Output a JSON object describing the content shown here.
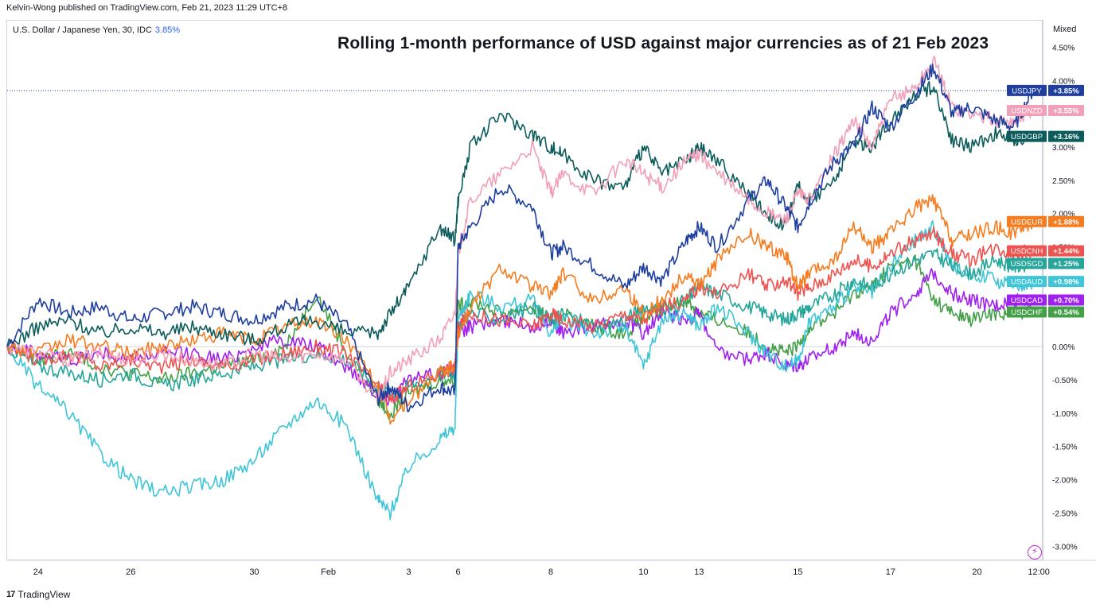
{
  "header": {
    "published_by": "Kelvin-Wong published on TradingView.com, Feb 21, 2023 11:29 UTC+8"
  },
  "symbol": {
    "name": "U.S. Dollar / Japanese Yen, 30, IDC",
    "value": "3.85%"
  },
  "scale_mode": "Mixed",
  "footer": {
    "brand": "TradingView",
    "logo": "17"
  },
  "colors": {
    "USDJPY": "#1e3fa0",
    "USDNZD": "#f2a0b8",
    "USDGBP": "#0d5c5c",
    "USDEUR": "#f57c1f",
    "USDCNH": "#ef5350",
    "USDSGD": "#26a69a",
    "USDAUD": "#3ec6d8",
    "USDCAD": "#a020f0",
    "USDCHF": "#43a047"
  },
  "chart_data": {
    "type": "line",
    "title": "Rolling 1-month performance of USD against major currencies as of 21 Feb 2023",
    "xlabel": "",
    "ylabel": "",
    "ylim": [
      -3.2,
      4.9
    ],
    "y_ticks": [
      "4.50%",
      "4.00%",
      "3.00%",
      "2.50%",
      "2.00%",
      "1.50%",
      "0.00%",
      "-0.50%",
      "-1.00%",
      "-1.50%",
      "-2.00%",
      "-2.50%",
      "-3.00%"
    ],
    "y_tick_values": [
      4.5,
      4.0,
      3.0,
      2.5,
      2.0,
      1.5,
      0.0,
      -0.5,
      -1.0,
      -1.5,
      -2.0,
      -2.5,
      -3.0
    ],
    "x_ticks": [
      "24",
      "26",
      "30",
      "Feb",
      "3",
      "6",
      "8",
      "10",
      "13",
      "15",
      "17",
      "20",
      "12:00"
    ],
    "x_tick_values": [
      0.5,
      2,
      4,
      5.2,
      6.5,
      7.3,
      8.8,
      10.3,
      11.2,
      12.8,
      14.3,
      15.7,
      16.7
    ],
    "x": [
      0,
      0.5,
      1,
      1.5,
      2,
      2.5,
      3,
      3.5,
      4,
      4.5,
      5,
      5.5,
      6,
      6.2,
      6.5,
      7,
      7.25,
      7.3,
      7.5,
      8,
      8.5,
      8.8,
      9,
      9.5,
      10,
      10.3,
      10.6,
      11,
      11.2,
      11.5,
      12,
      12.3,
      12.6,
      12.8,
      13,
      13.4,
      13.7,
      14,
      14.3,
      14.7,
      15,
      15.3,
      15.6,
      16,
      16.3,
      16.6
    ],
    "series": [
      {
        "name": "USDJPY",
        "label": "+3.85%",
        "values": [
          0,
          0.7,
          0.5,
          0.6,
          0.4,
          0.5,
          0.6,
          0.5,
          0.4,
          0.6,
          0.7,
          0.3,
          -0.8,
          -0.6,
          -0.9,
          -0.6,
          -0.7,
          1.5,
          1.8,
          2.4,
          2.1,
          1.4,
          1.5,
          1.2,
          0.9,
          1.2,
          1.0,
          1.6,
          1.8,
          1.5,
          2.2,
          2.5,
          2.1,
          1.8,
          2.2,
          2.8,
          3.0,
          3.6,
          3.3,
          3.8,
          4.2,
          3.5,
          3.6,
          3.4,
          3.3,
          3.85
        ]
      },
      {
        "name": "USDNZD",
        "label": "+3.55%",
        "values": [
          0,
          -0.1,
          -0.2,
          -0.1,
          -0.2,
          -0.1,
          -0.2,
          -0.3,
          -0.1,
          -0.2,
          -0.1,
          -0.2,
          -0.8,
          -0.4,
          -0.2,
          0.1,
          0.5,
          1.4,
          2.2,
          2.6,
          3.0,
          2.3,
          2.6,
          2.3,
          2.8,
          2.6,
          2.4,
          2.8,
          2.9,
          2.6,
          2.2,
          2.0,
          1.9,
          2.3,
          2.2,
          2.9,
          3.4,
          3.0,
          3.7,
          3.9,
          4.3,
          3.6,
          3.5,
          3.4,
          3.4,
          3.55
        ]
      },
      {
        "name": "USDGBP",
        "label": "+3.16%",
        "values": [
          0,
          0.3,
          0.4,
          0.2,
          0.3,
          0.2,
          0.3,
          0.2,
          0.1,
          0.3,
          0.4,
          0.2,
          0.2,
          0.5,
          0.9,
          1.8,
          1.6,
          2.2,
          3.0,
          3.5,
          3.2,
          3.0,
          2.9,
          2.5,
          2.4,
          3.0,
          2.6,
          2.8,
          3.0,
          2.8,
          2.3,
          2.0,
          1.8,
          2.4,
          2.2,
          2.5,
          3.1,
          3.0,
          3.4,
          3.8,
          3.9,
          3.1,
          3.0,
          3.2,
          3.1,
          3.16
        ]
      },
      {
        "name": "USDEUR",
        "label": "+1.88%",
        "values": [
          0,
          -0.1,
          0.1,
          0.0,
          -0.1,
          0.0,
          0.1,
          0.2,
          0.1,
          0.3,
          0.4,
          0.1,
          -0.6,
          -1.1,
          -0.8,
          -0.4,
          -0.3,
          0.2,
          0.6,
          1.2,
          0.9,
          0.8,
          1.1,
          0.7,
          0.9,
          0.5,
          0.7,
          1.1,
          0.9,
          1.3,
          1.7,
          1.5,
          1.4,
          0.9,
          1.1,
          1.3,
          1.8,
          1.5,
          1.7,
          2.1,
          2.2,
          1.6,
          1.7,
          1.8,
          1.7,
          1.88
        ]
      },
      {
        "name": "USDCNH",
        "label": "+1.44%",
        "values": [
          0,
          -0.2,
          -0.1,
          -0.3,
          -0.2,
          -0.3,
          -0.2,
          -0.3,
          -0.2,
          -0.1,
          0.0,
          -0.1,
          -0.6,
          -0.8,
          -0.6,
          -0.4,
          -0.3,
          0.3,
          0.5,
          0.4,
          0.3,
          0.5,
          0.4,
          0.3,
          0.5,
          0.4,
          0.6,
          0.7,
          0.9,
          0.8,
          1.1,
          0.9,
          1.0,
          0.8,
          0.9,
          1.1,
          1.3,
          1.2,
          1.4,
          1.6,
          1.7,
          1.4,
          1.3,
          1.5,
          1.4,
          1.44
        ]
      },
      {
        "name": "USDSGD",
        "label": "+1.25%",
        "values": [
          0,
          -0.3,
          -0.4,
          -0.5,
          -0.4,
          -0.6,
          -0.5,
          -0.4,
          -0.3,
          -0.2,
          -0.1,
          -0.2,
          -0.6,
          -0.7,
          -0.6,
          -0.4,
          -0.4,
          0.3,
          0.5,
          0.4,
          0.6,
          0.4,
          0.5,
          0.3,
          0.4,
          0.6,
          0.5,
          0.7,
          0.9,
          0.8,
          0.6,
          0.5,
          0.4,
          0.5,
          0.6,
          0.8,
          1.0,
          0.9,
          1.1,
          1.3,
          1.4,
          1.2,
          1.1,
          1.3,
          1.2,
          1.25
        ]
      },
      {
        "name": "USDAUD",
        "label": "+0.98%",
        "values": [
          0,
          -0.6,
          -1.0,
          -1.6,
          -2.0,
          -2.2,
          -2.1,
          -2.0,
          -1.7,
          -1.2,
          -0.8,
          -1.2,
          -2.3,
          -2.5,
          -1.8,
          -1.4,
          -1.2,
          0.4,
          0.8,
          0.6,
          0.7,
          0.2,
          0.4,
          0.2,
          0.3,
          -0.3,
          0.4,
          0.5,
          0.3,
          0.6,
          0.2,
          -0.1,
          -0.3,
          -0.2,
          0.4,
          0.6,
          0.9,
          0.8,
          1.2,
          1.6,
          1.8,
          1.2,
          1.1,
          1.0,
          0.9,
          0.98
        ]
      },
      {
        "name": "USDCAD",
        "label": "+0.70%",
        "values": [
          0,
          -0.1,
          -0.2,
          -0.1,
          -0.2,
          -0.1,
          -0.1,
          -0.2,
          0.0,
          0.1,
          0.0,
          -0.3,
          -0.7,
          -0.8,
          -0.5,
          -0.4,
          -0.3,
          0.2,
          0.3,
          0.4,
          0.3,
          0.4,
          0.2,
          0.3,
          0.4,
          0.2,
          0.5,
          0.4,
          0.5,
          -0.1,
          -0.2,
          -0.1,
          -0.3,
          -0.3,
          -0.2,
          0.0,
          0.2,
          0.1,
          0.5,
          0.8,
          1.1,
          0.8,
          0.7,
          0.6,
          0.7,
          0.7
        ]
      },
      {
        "name": "USDCHF",
        "label": "+0.54%",
        "values": [
          0,
          -0.2,
          -0.1,
          -0.3,
          -0.4,
          -0.5,
          -0.4,
          -0.3,
          -0.2,
          0.0,
          0.8,
          -0.1,
          -0.8,
          -1.0,
          -0.7,
          -0.5,
          -0.5,
          0.6,
          0.7,
          0.5,
          0.6,
          0.4,
          0.5,
          0.3,
          0.2,
          0.4,
          0.6,
          0.7,
          0.5,
          0.4,
          0.2,
          0.0,
          -0.1,
          0.0,
          0.3,
          0.5,
          0.8,
          0.9,
          1.2,
          1.3,
          0.7,
          0.5,
          0.4,
          0.5,
          0.5,
          0.54
        ]
      }
    ]
  }
}
